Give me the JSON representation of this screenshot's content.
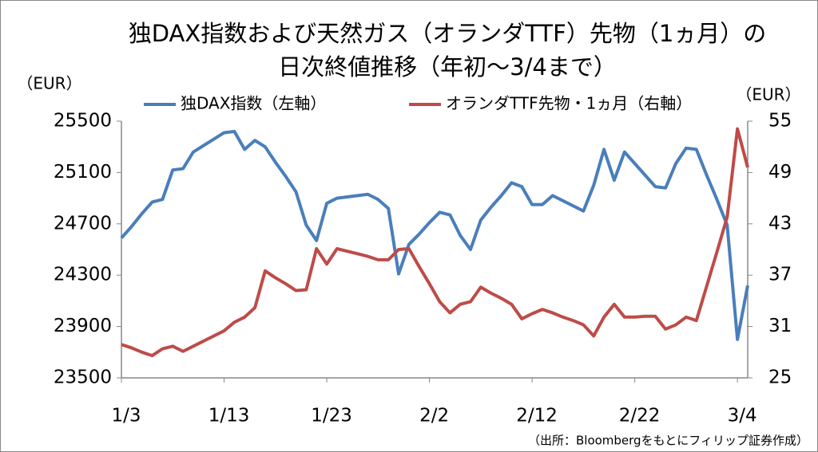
{
  "chart_data": {
    "type": "line",
    "title": [
      "独DAX指数および天然ガス（オランダTTF）先物（1ヵ月）の",
      "日次終値推移（年初～3/4まで）"
    ],
    "y_label": "（EUR）",
    "y2_label": "（EUR）",
    "source": "（出所：Bloombergをもとにフィリップ証券作成）",
    "categories": [
      "1/3",
      null,
      null,
      null,
      null,
      null,
      null,
      null,
      null,
      null,
      "1/13",
      null,
      null,
      null,
      null,
      null,
      null,
      null,
      null,
      null,
      "1/23",
      null,
      null,
      null,
      null,
      null,
      null,
      null,
      null,
      null,
      "2/2",
      null,
      null,
      null,
      null,
      null,
      null,
      null,
      null,
      null,
      "2/12",
      null,
      null,
      null,
      null,
      null,
      null,
      null,
      null,
      null,
      "2/22",
      null,
      null,
      null,
      null,
      null,
      null,
      null,
      null,
      null,
      "3/4",
      null
    ],
    "series": [
      {
        "name": "独DAX指数（左軸）",
        "color": "#4a7ebb",
        "axis": "y",
        "values": [
          24590,
          24680,
          24780,
          24870,
          24890,
          25120,
          25130,
          25260,
          25310,
          25360,
          25410,
          25420,
          25280,
          25350,
          25300,
          25180,
          25070,
          24950,
          24690,
          24570,
          24860,
          24900,
          24910,
          24920,
          24930,
          24890,
          24820,
          24310,
          24540,
          24620,
          24710,
          24790,
          24770,
          24610,
          24500,
          24730,
          24830,
          24920,
          25020,
          24990,
          24850,
          24850,
          24920,
          24880,
          24840,
          24800,
          25000,
          25280,
          25040,
          25260,
          25170,
          25080,
          24990,
          24980,
          25170,
          25290,
          25280,
          25080,
          24890,
          24690,
          23800,
          24220
        ]
      },
      {
        "name": "オランダTTF先物・1ヵ月（右軸）",
        "color": "#be4b48",
        "axis": "y2",
        "values": [
          28.9,
          28.5,
          28.0,
          27.6,
          28.4,
          28.7,
          28.1,
          28.7,
          29.3,
          29.9,
          30.5,
          31.5,
          32.1,
          33.2,
          37.5,
          36.7,
          36.0,
          35.2,
          35.3,
          40.1,
          38.3,
          40.1,
          39.8,
          39.5,
          39.2,
          38.8,
          38.8,
          40.0,
          40.1,
          38.0,
          36.0,
          33.9,
          32.6,
          33.6,
          33.9,
          35.6,
          34.9,
          34.3,
          33.6,
          31.9,
          32.5,
          33.0,
          32.6,
          32.1,
          31.7,
          31.2,
          29.9,
          32.1,
          33.6,
          32.1,
          32.1,
          32.2,
          32.2,
          30.7,
          31.2,
          32.1,
          31.7,
          35.7,
          39.7,
          43.8,
          54.1,
          49.6
        ]
      }
    ],
    "ylim": [
      23500,
      25500
    ],
    "yticks": [
      23500,
      23900,
      24300,
      24700,
      25100,
      25500
    ],
    "y2lim": [
      25,
      55
    ],
    "y2ticks": [
      25,
      31,
      37,
      43,
      49,
      55
    ],
    "grid": false,
    "legend": "top"
  }
}
